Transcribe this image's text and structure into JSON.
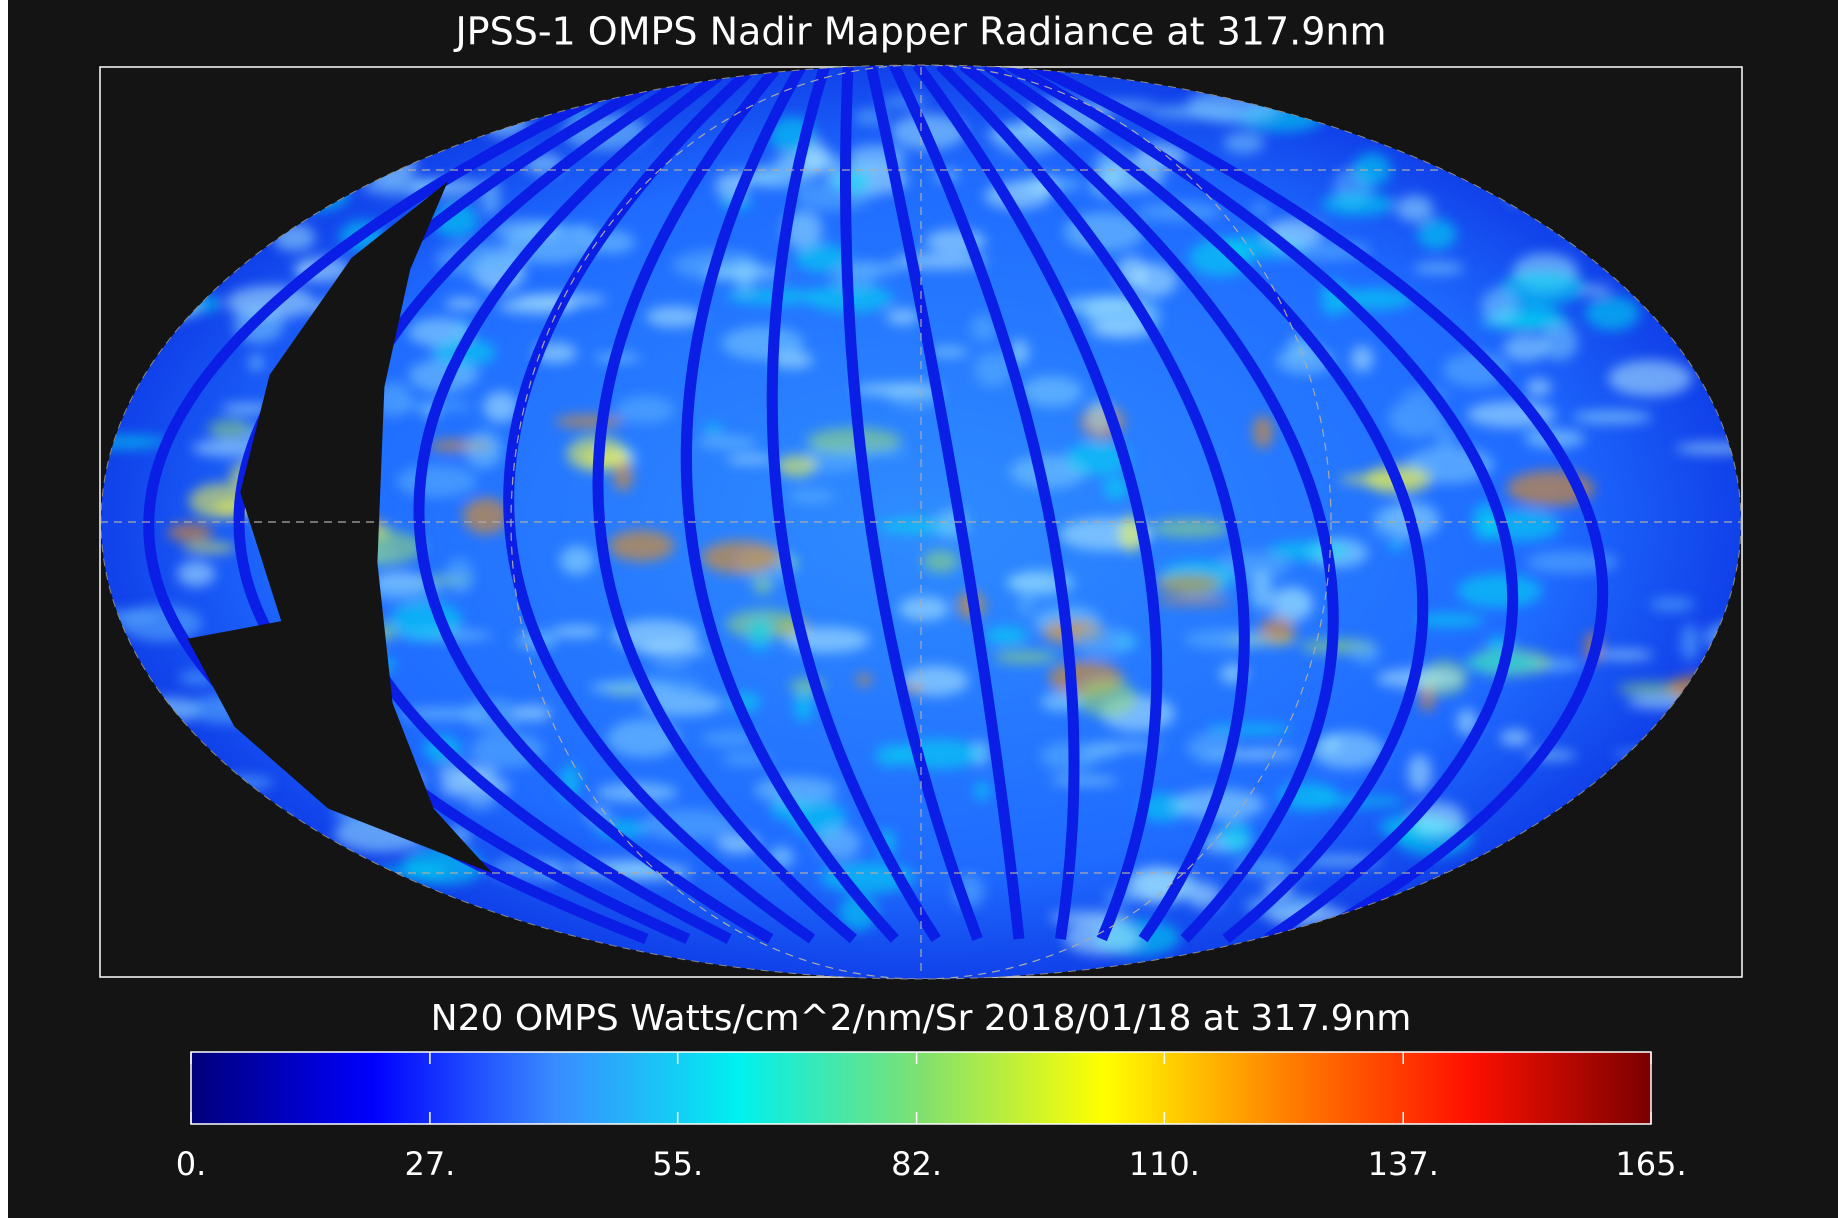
{
  "title": "JPSS-1 OMPS Nadir Mapper Radiance at 317.9nm",
  "colorbar": {
    "label": "N20 OMPS Watts/cm^2/nm/Sr 2018/01/18 at 317.9nm",
    "range": [
      0,
      165
    ],
    "ticks": [
      {
        "value": 0,
        "label": "0."
      },
      {
        "value": 27,
        "label": "27."
      },
      {
        "value": 55,
        "label": "55."
      },
      {
        "value": 82,
        "label": "82."
      },
      {
        "value": 110,
        "label": "110."
      },
      {
        "value": 137,
        "label": "137."
      },
      {
        "value": 165,
        "label": "165."
      }
    ],
    "colors": [
      "#00007a",
      "#0000ff",
      "#3a8cff",
      "#00f0f0",
      "#80e070",
      "#ffff00",
      "#ff8000",
      "#ff1000",
      "#7a0000"
    ]
  }
}
